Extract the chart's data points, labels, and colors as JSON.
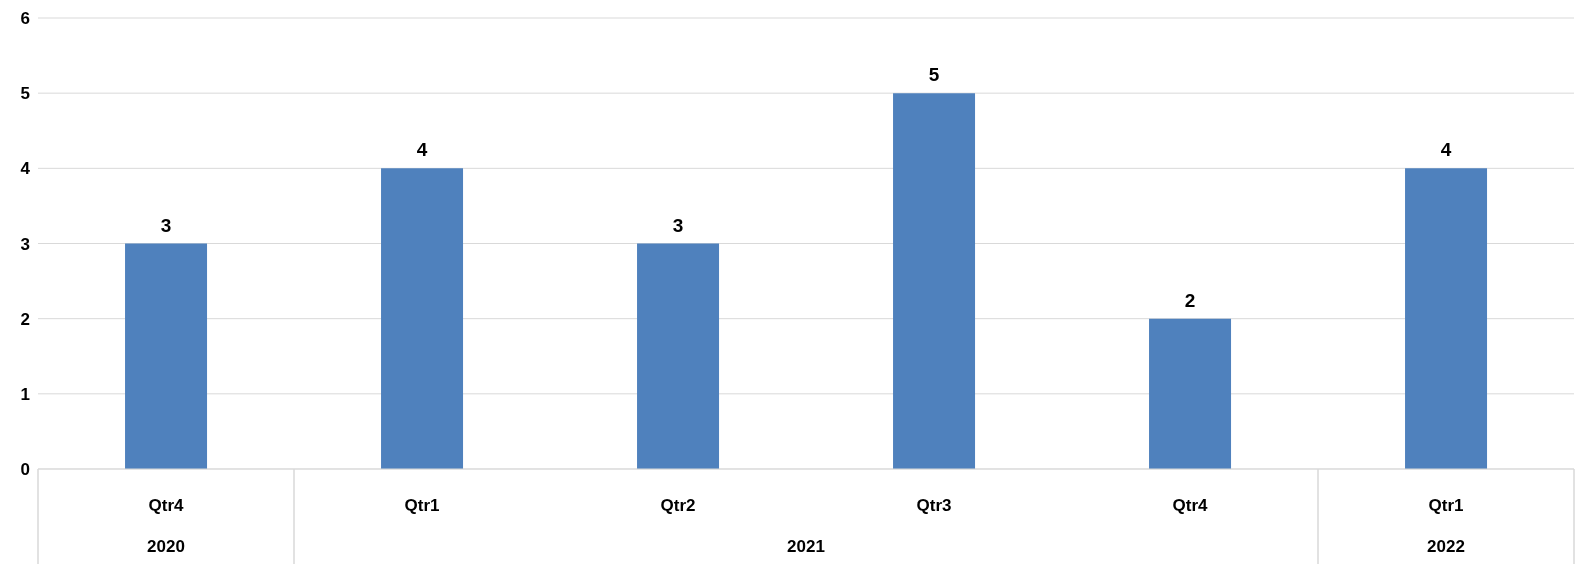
{
  "chart_data": {
    "type": "bar",
    "categories": [
      "Qtr4",
      "Qtr1",
      "Qtr2",
      "Qtr3",
      "Qtr4",
      "Qtr1"
    ],
    "values": [
      3,
      4,
      3,
      5,
      2,
      4
    ],
    "color": "#4f81bd",
    "ylim": [
      0,
      6
    ],
    "yticks": [
      0,
      1,
      2,
      3,
      4,
      5,
      6
    ],
    "grid": "y",
    "data_labels": true,
    "annotations": [
      "2020",
      "2021",
      "2022"
    ]
  }
}
